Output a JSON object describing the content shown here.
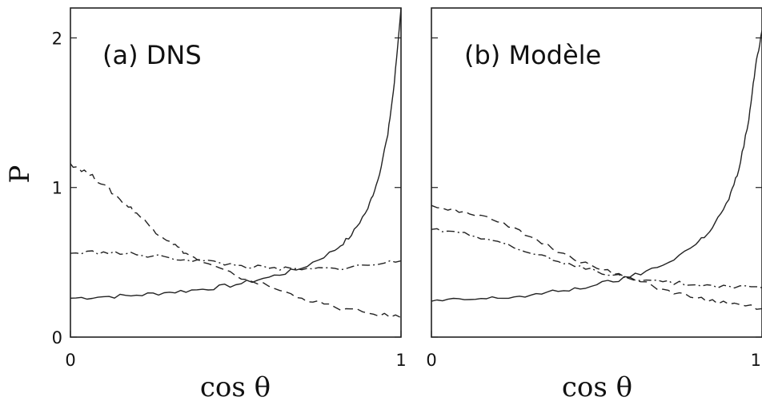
{
  "chart_data": [
    {
      "type": "line",
      "panel_label": "(a) DNS",
      "xlabel": "cos θ",
      "ylabel": "P",
      "xlim": [
        0,
        1
      ],
      "ylim": [
        0,
        2.2
      ],
      "xticks": [
        0,
        1
      ],
      "yticks": [
        0,
        1,
        2
      ],
      "grid": false,
      "series": [
        {
          "style": "solid",
          "x": [
            0,
            0.1,
            0.2,
            0.3,
            0.4,
            0.5,
            0.6,
            0.7,
            0.8,
            0.85,
            0.9,
            0.93,
            0.96,
            0.98,
            1.0
          ],
          "y": [
            0.26,
            0.27,
            0.28,
            0.3,
            0.32,
            0.35,
            0.4,
            0.46,
            0.58,
            0.68,
            0.86,
            1.05,
            1.35,
            1.7,
            2.2
          ]
        },
        {
          "style": "dashed",
          "x": [
            0,
            0.05,
            0.1,
            0.15,
            0.2,
            0.25,
            0.3,
            0.35,
            0.4,
            0.5,
            0.6,
            0.7,
            0.8,
            0.9,
            1.0
          ],
          "y": [
            1.16,
            1.1,
            1.02,
            0.92,
            0.83,
            0.72,
            0.64,
            0.56,
            0.5,
            0.41,
            0.34,
            0.26,
            0.2,
            0.16,
            0.13
          ]
        },
        {
          "style": "dashdot",
          "x": [
            0,
            0.1,
            0.2,
            0.3,
            0.4,
            0.5,
            0.6,
            0.7,
            0.8,
            0.9,
            1.0
          ],
          "y": [
            0.56,
            0.57,
            0.55,
            0.53,
            0.51,
            0.48,
            0.46,
            0.45,
            0.46,
            0.48,
            0.51
          ]
        }
      ]
    },
    {
      "type": "line",
      "panel_label": "(b) Modèle",
      "xlabel": "cos θ",
      "xlim": [
        0,
        1
      ],
      "ylim": [
        0,
        2.2
      ],
      "xticks": [
        0,
        1
      ],
      "yticks": [
        0,
        1,
        2
      ],
      "grid": false,
      "series": [
        {
          "style": "solid",
          "x": [
            0,
            0.1,
            0.2,
            0.3,
            0.4,
            0.5,
            0.6,
            0.7,
            0.8,
            0.85,
            0.9,
            0.93,
            0.96,
            0.98,
            1.0
          ],
          "y": [
            0.24,
            0.25,
            0.26,
            0.28,
            0.31,
            0.35,
            0.4,
            0.48,
            0.62,
            0.73,
            0.92,
            1.12,
            1.45,
            1.8,
            2.05
          ]
        },
        {
          "style": "dashed",
          "x": [
            0,
            0.1,
            0.2,
            0.3,
            0.4,
            0.5,
            0.6,
            0.7,
            0.8,
            0.9,
            1.0
          ],
          "y": [
            0.88,
            0.84,
            0.77,
            0.67,
            0.56,
            0.46,
            0.39,
            0.32,
            0.26,
            0.22,
            0.19
          ]
        },
        {
          "style": "dashdot",
          "x": [
            0,
            0.1,
            0.2,
            0.3,
            0.4,
            0.5,
            0.6,
            0.7,
            0.8,
            0.9,
            1.0
          ],
          "y": [
            0.72,
            0.7,
            0.64,
            0.56,
            0.49,
            0.44,
            0.4,
            0.37,
            0.35,
            0.34,
            0.33
          ]
        }
      ]
    }
  ]
}
